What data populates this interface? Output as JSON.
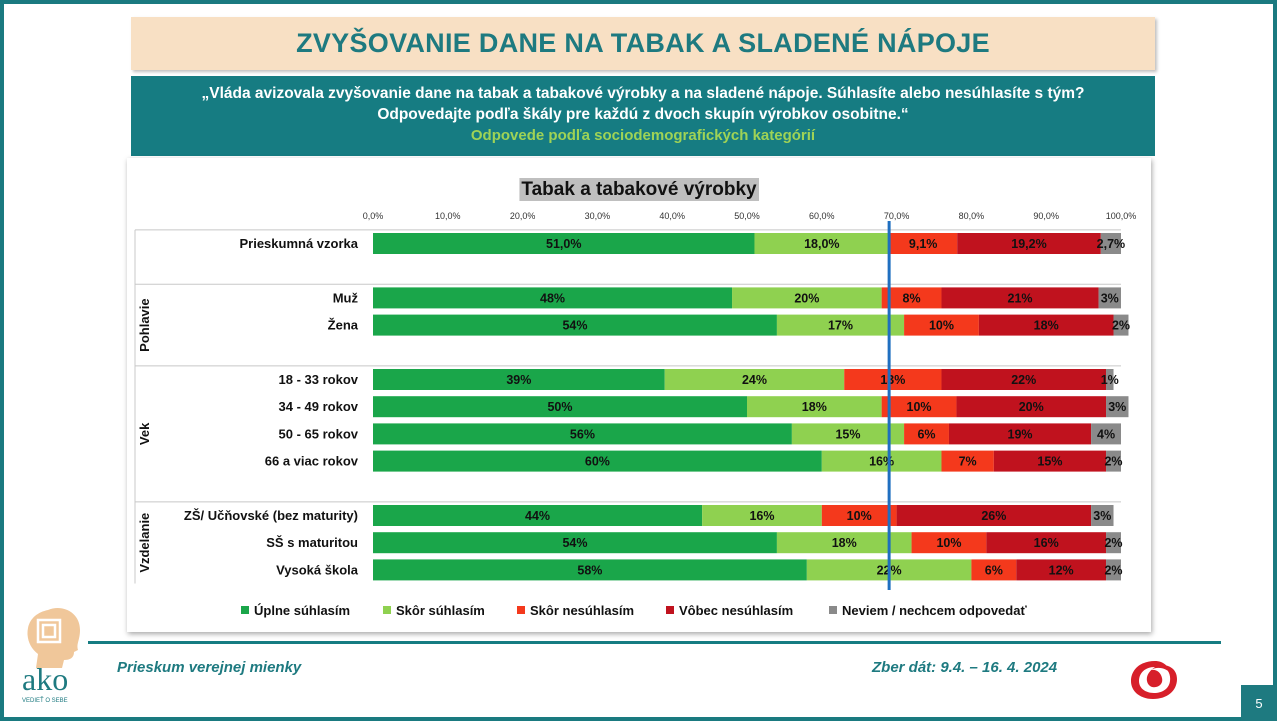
{
  "slide": {
    "title": "ZVYŠOVANIE DANE NA TABAK A SLADENÉ NÁPOJE",
    "question_line1": "„Vláda avizovala zvyšovanie dane na tabak a tabakové výrobky a na sladené nápoje. Súhlasíte alebo nesúhlasíte s tým?",
    "question_line2": "Odpovedajte podľa škály pre každú z dvoch skupín výrobkov osobitne.“",
    "subtitle": "Odpovede podľa sociodemografických kategórií",
    "footer_left": "Prieskum verejnej mienky",
    "footer_right": "Zber dát: 9.4. – 16. 4. 2024",
    "page_number": "5",
    "logo_text": "ako",
    "logo_tagline": "VEDIEŤ O SEBE"
  },
  "colors": {
    "teal": "#167c82",
    "series": [
      "#1aa64a",
      "#8fd150",
      "#f4391c",
      "#c0121e",
      "#8a8a8a"
    ],
    "reference_line": "#1f6fc0"
  },
  "chart_data": {
    "type": "bar",
    "orientation": "horizontal",
    "stacked": true,
    "title": "Tabak a tabakové výrobky",
    "xlim": [
      0,
      100
    ],
    "xticks": [
      "0,0%",
      "10,0%",
      "20,0%",
      "30,0%",
      "40,0%",
      "50,0%",
      "60,0%",
      "70,0%",
      "80,0%",
      "90,0%",
      "100,0%"
    ],
    "reference_line_x": 69,
    "legend_position": "bottom",
    "series_names": [
      "Úplne súhlasím",
      "Skôr súhlasím",
      "Skôr nesúhlasím",
      "Vôbec nesúhlasím",
      "Neviem / nechcem odpovedať"
    ],
    "groups": [
      {
        "name": "",
        "rows": [
          {
            "label": "Prieskumná vzorka",
            "values": [
              51.0,
              18.0,
              9.1,
              19.2,
              2.7
            ],
            "labels": [
              "51,0%",
              "18,0%",
              "9,1%",
              "19,2%",
              "2,7%"
            ]
          }
        ]
      },
      {
        "name": "Pohlavie",
        "rows": [
          {
            "label": "Muž",
            "values": [
              48,
              20,
              8,
              21,
              3
            ],
            "labels": [
              "48%",
              "20%",
              "8%",
              "21%",
              "3%"
            ]
          },
          {
            "label": "Žena",
            "values": [
              54,
              17,
              10,
              18,
              2
            ],
            "labels": [
              "54%",
              "17%",
              "10%",
              "18%",
              "2%"
            ]
          }
        ]
      },
      {
        "name": "Vek",
        "rows": [
          {
            "label": "18 - 33 rokov",
            "values": [
              39,
              24,
              13,
              22,
              1
            ],
            "labels": [
              "39%",
              "24%",
              "13%",
              "22%",
              "1%"
            ]
          },
          {
            "label": "34 - 49 rokov",
            "values": [
              50,
              18,
              10,
              20,
              3
            ],
            "labels": [
              "50%",
              "18%",
              "10%",
              "20%",
              "3%"
            ]
          },
          {
            "label": "50 - 65 rokov",
            "values": [
              56,
              15,
              6,
              19,
              4
            ],
            "labels": [
              "56%",
              "15%",
              "6%",
              "19%",
              "4%"
            ]
          },
          {
            "label": "66 a viac rokov",
            "values": [
              60,
              16,
              7,
              15,
              2
            ],
            "labels": [
              "60%",
              "16%",
              "7%",
              "15%",
              "2%"
            ]
          }
        ]
      },
      {
        "name": "Vzdelanie",
        "rows": [
          {
            "label": "ZŠ/ Učňovské (bez maturity)",
            "values": [
              44,
              16,
              10,
              26,
              3
            ],
            "labels": [
              "44%",
              "16%",
              "10%",
              "26%",
              "3%"
            ]
          },
          {
            "label": "SŠ s maturitou",
            "values": [
              54,
              18,
              10,
              16,
              2
            ],
            "labels": [
              "54%",
              "18%",
              "10%",
              "16%",
              "2%"
            ]
          },
          {
            "label": "Vysoká škola",
            "values": [
              58,
              22,
              6,
              12,
              2
            ],
            "labels": [
              "58%",
              "22%",
              "6%",
              "12%",
              "2%"
            ]
          }
        ]
      }
    ]
  }
}
